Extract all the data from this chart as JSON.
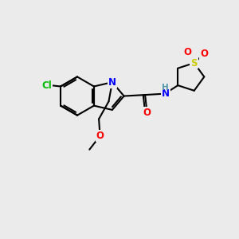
{
  "background_color": "#ebebeb",
  "atom_colors": {
    "C": "#000000",
    "N": "#0000ff",
    "O": "#ff0000",
    "S": "#cccc00",
    "Cl": "#00bb00",
    "H": "#5599aa"
  },
  "figsize": [
    3.0,
    3.0
  ],
  "dpi": 100
}
